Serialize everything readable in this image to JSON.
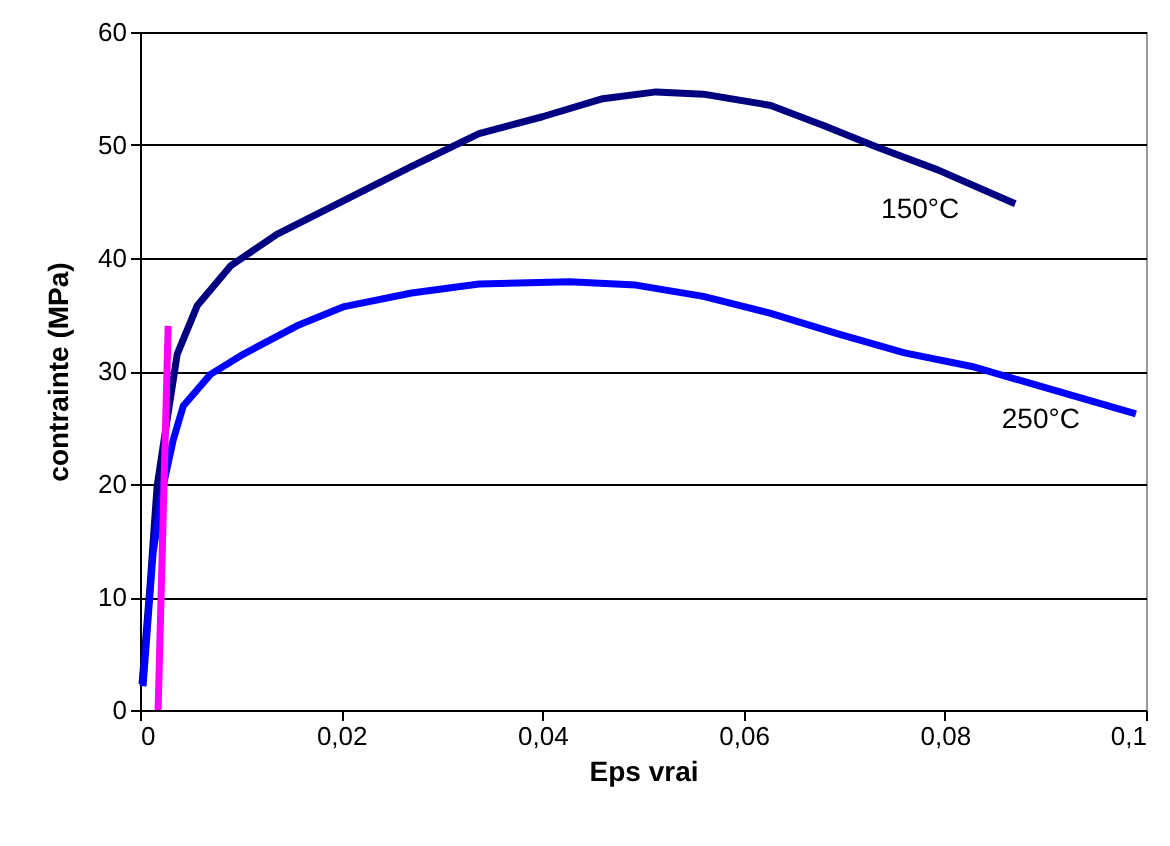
{
  "chart_data": {
    "type": "line",
    "xlabel": "Eps vrai",
    "ylabel": "contrainte (MPa)",
    "xlim": [
      0,
      0.1
    ],
    "ylim": [
      0,
      60
    ],
    "xticks": [
      {
        "value": 0,
        "label": "0"
      },
      {
        "value": 0.02,
        "label": "0,02"
      },
      {
        "value": 0.04,
        "label": "0,04"
      },
      {
        "value": 0.06,
        "label": "0,06"
      },
      {
        "value": 0.08,
        "label": "0,08"
      },
      {
        "value": 0.1,
        "label": "0,1"
      }
    ],
    "yticks": [
      0,
      10,
      20,
      30,
      40,
      50,
      60
    ],
    "grid": "y",
    "marker": "none",
    "line_style": "solid",
    "series": [
      {
        "name": "150°C",
        "color": "#000080",
        "x": [
          0.0002,
          0.001,
          0.0017,
          0.0027,
          0.0037,
          0.0057,
          0.009,
          0.0136,
          0.0203,
          0.027,
          0.0337,
          0.04,
          0.046,
          0.0513,
          0.056,
          0.0627,
          0.068,
          0.0733,
          0.0793,
          0.087
        ],
        "values": [
          2.3,
          11,
          19.8,
          25.7,
          31.5,
          35.8,
          39.3,
          42.1,
          45.1,
          48.1,
          51,
          52.5,
          54.1,
          54.7,
          54.5,
          53.5,
          51.7,
          49.8,
          47.8,
          44.8
        ]
      },
      {
        "name": "250°C",
        "color": "#0000ff",
        "x": [
          0.0003,
          0.0013,
          0.0023,
          0.0033,
          0.0043,
          0.007,
          0.0103,
          0.0156,
          0.0203,
          0.027,
          0.0337,
          0.0427,
          0.0493,
          0.056,
          0.0627,
          0.0693,
          0.076,
          0.0827,
          0.0893,
          0.099
        ],
        "values": [
          2.1,
          13.9,
          19.8,
          23.9,
          26.9,
          29.7,
          31.5,
          34,
          35.7,
          36.9,
          37.7,
          37.9,
          37.6,
          36.6,
          35.1,
          33.3,
          31.6,
          30.4,
          28.7,
          26.2
        ]
      },
      {
        "color": "#ff00ff",
        "x": [
          0.0018,
          0.0028
        ],
        "values": [
          0,
          34
        ]
      }
    ]
  }
}
